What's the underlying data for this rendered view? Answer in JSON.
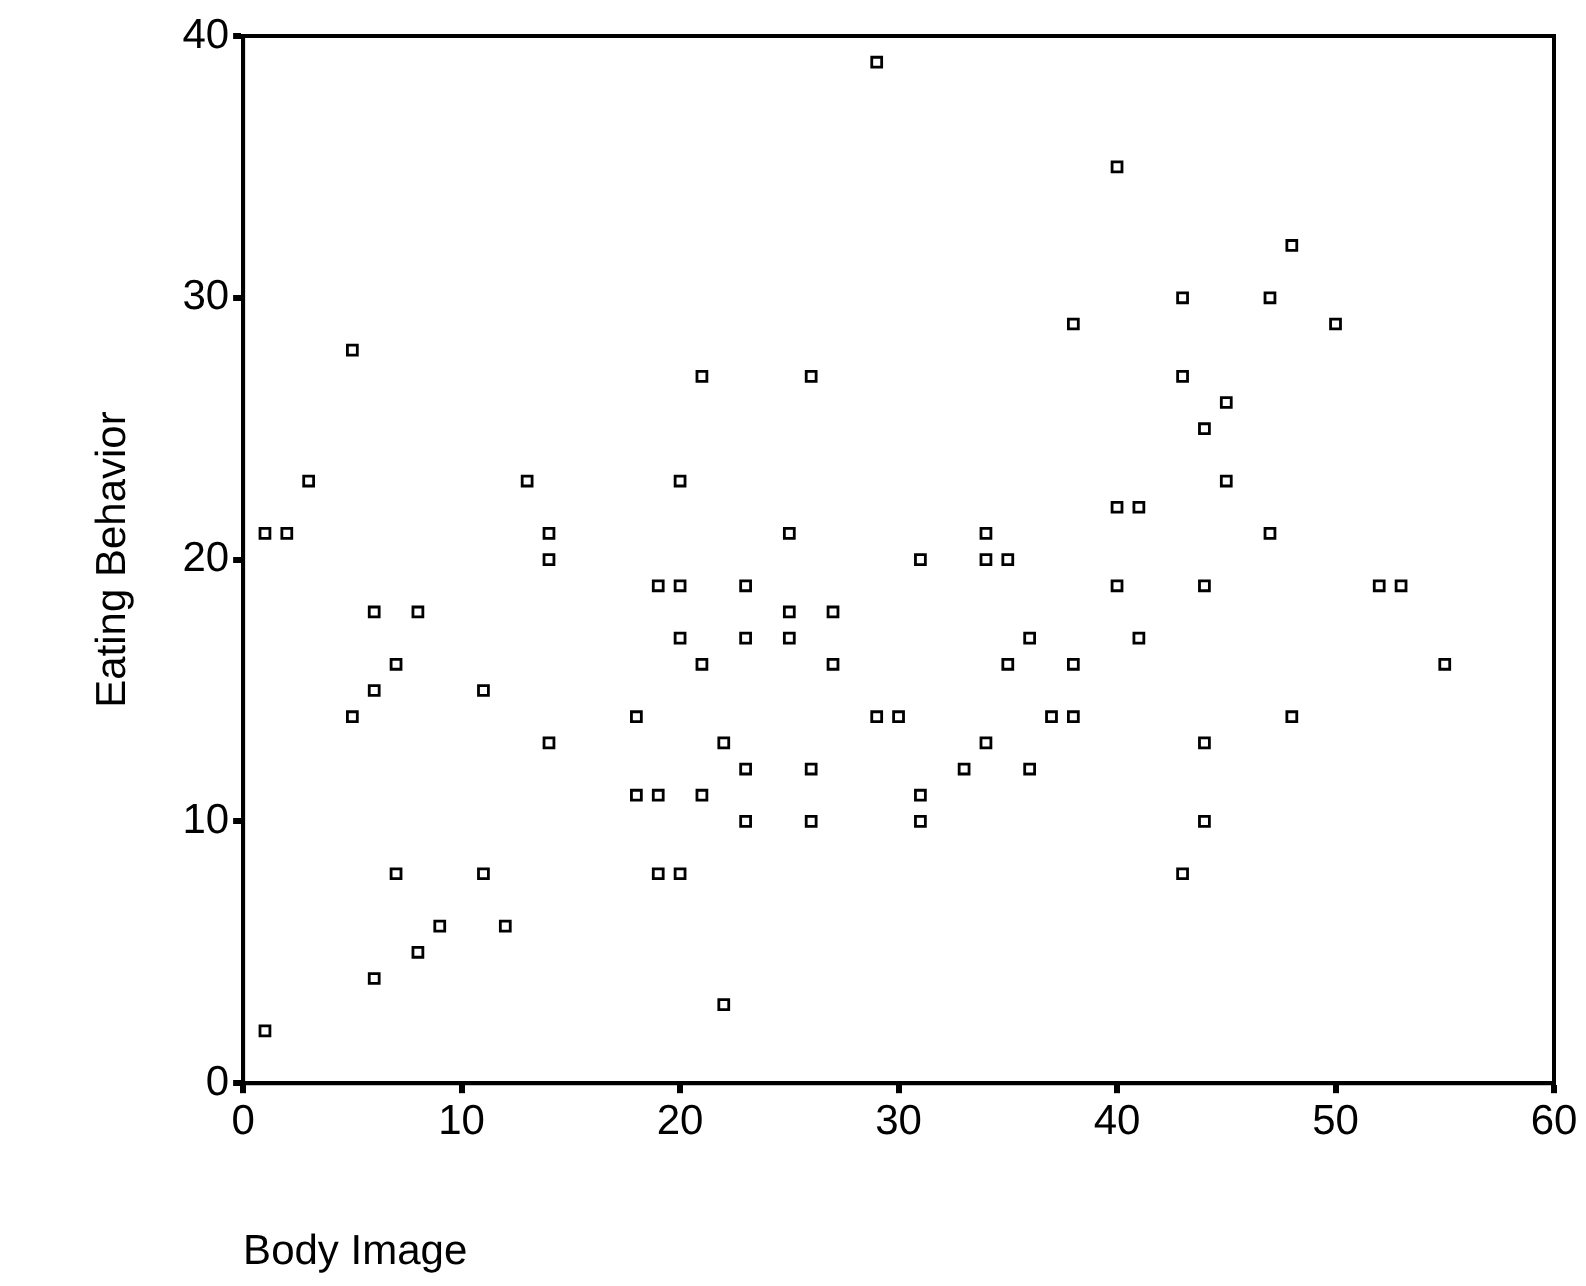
{
  "chart_data": {
    "type": "scatter",
    "xlabel": "Body Image",
    "ylabel": "Eating Behavior",
    "xlim": [
      0,
      60
    ],
    "xticks": [
      0,
      10,
      20,
      30,
      40,
      50,
      60
    ],
    "ylim": [
      0,
      40
    ],
    "yticks": [
      0,
      10,
      20,
      30,
      40
    ],
    "grid": false,
    "legend": false,
    "marker": "square",
    "series": [
      {
        "color": "#000000",
        "x": [
          5,
          3,
          1,
          2,
          13,
          14,
          14,
          19,
          6,
          8,
          7,
          6,
          5,
          11,
          14,
          18,
          18,
          19,
          7,
          11,
          19,
          9,
          12,
          8,
          6,
          1,
          29,
          40,
          38,
          21,
          26,
          20,
          40,
          25,
          34,
          31,
          34,
          35,
          20,
          23,
          40,
          25,
          27,
          20,
          23,
          25,
          36,
          21,
          27,
          35,
          38,
          29,
          30,
          37,
          38,
          22,
          34,
          23,
          26,
          33,
          36,
          21,
          31,
          23,
          26,
          31,
          20,
          22,
          48,
          43,
          47,
          50,
          43,
          45,
          44,
          45,
          41,
          47,
          44,
          52,
          53,
          41,
          55,
          48,
          44,
          44,
          43
        ],
        "values": [
          28,
          23,
          21,
          21,
          23,
          21,
          20,
          19,
          18,
          18,
          16,
          15,
          14,
          15,
          13,
          14,
          11,
          11,
          8,
          8,
          8,
          6,
          6,
          5,
          4,
          2,
          39,
          35,
          29,
          27,
          27,
          23,
          22,
          21,
          21,
          20,
          20,
          20,
          19,
          19,
          19,
          18,
          18,
          17,
          17,
          17,
          17,
          16,
          16,
          16,
          16,
          14,
          14,
          14,
          14,
          13,
          13,
          12,
          12,
          12,
          12,
          11,
          11,
          10,
          10,
          10,
          8,
          3,
          32,
          30,
          30,
          29,
          27,
          26,
          25,
          23,
          22,
          21,
          19,
          19,
          19,
          17,
          16,
          14,
          13,
          10,
          8
        ]
      }
    ]
  }
}
